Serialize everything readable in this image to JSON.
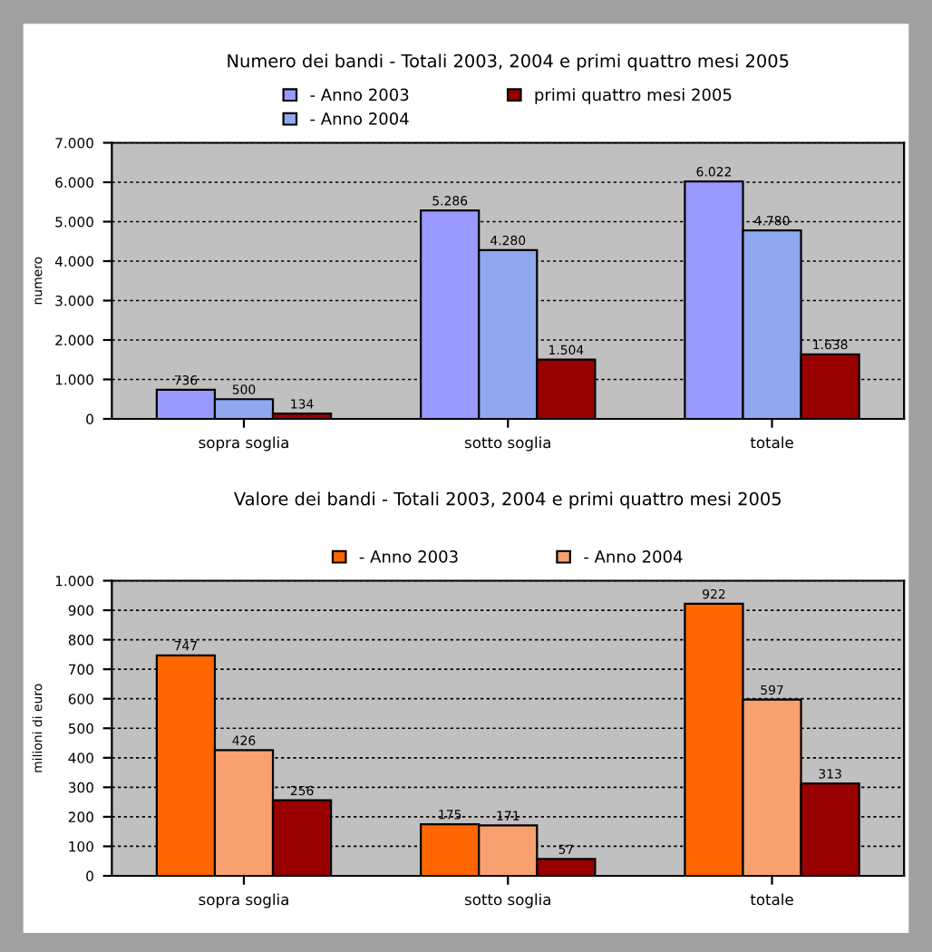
{
  "chart_data": [
    {
      "type": "bar",
      "title": "Numero dei bandi - Totali 2003, 2004 e primi quattro mesi 2005",
      "ylabel": "numero",
      "categories": [
        "sopra soglia",
        "sotto soglia",
        "totale"
      ],
      "series": [
        {
          "name": "- Anno 2003",
          "color": "#9999ff",
          "values": [
            736,
            5286,
            6022
          ],
          "value_labels": [
            "736",
            "5.286",
            "6.022"
          ]
        },
        {
          "name": "- Anno 2004",
          "color": "#8fa8f0",
          "values": [
            500,
            4280,
            4780
          ],
          "value_labels": [
            "500",
            "4.280",
            "4.780"
          ]
        },
        {
          "name": "primi quattro mesi 2005",
          "color": "#990000",
          "values": [
            134,
            1504,
            1638
          ],
          "value_labels": [
            "134",
            "1.504",
            "1.638"
          ]
        }
      ],
      "ylim": [
        0,
        7000
      ],
      "yticks": [
        0,
        {
          "value": 1000,
          "label": "1.000"
        },
        {
          "value": 2000,
          "label": "2.000"
        },
        {
          "value": 3000,
          "label": "3.000"
        },
        {
          "value": 4000,
          "label": "4.000"
        },
        {
          "value": 5000,
          "label": "5.000"
        },
        {
          "value": 6000,
          "label": "6.000"
        },
        {
          "value": 7000,
          "label": "7.000"
        }
      ],
      "grid": "y",
      "legend": "top"
    },
    {
      "type": "bar",
      "title": "Valore dei bandi - Totali 2003, 2004 e primi quattro mesi 2005",
      "ylabel": "milioni di euro",
      "categories": [
        "sopra soglia",
        "sotto soglia",
        "totale"
      ],
      "series": [
        {
          "name": "- Anno 2003",
          "color": "#ff6600",
          "values": [
            747,
            175,
            922
          ],
          "value_labels": [
            "747",
            "175",
            "922"
          ]
        },
        {
          "name": "- Anno 2004",
          "color": "#f8a070",
          "values": [
            426,
            171,
            597
          ],
          "value_labels": [
            "426",
            "171",
            "597"
          ]
        },
        {
          "color": "#990000",
          "values": [
            256,
            57,
            313
          ],
          "value_labels": [
            "256",
            "57",
            "313"
          ]
        }
      ],
      "ylim": [
        0,
        1000
      ],
      "yticks": [
        0,
        100,
        200,
        300,
        400,
        500,
        600,
        700,
        800,
        900,
        {
          "value": 1000,
          "label": "1.000"
        }
      ],
      "grid": "y",
      "legend": "top"
    }
  ]
}
